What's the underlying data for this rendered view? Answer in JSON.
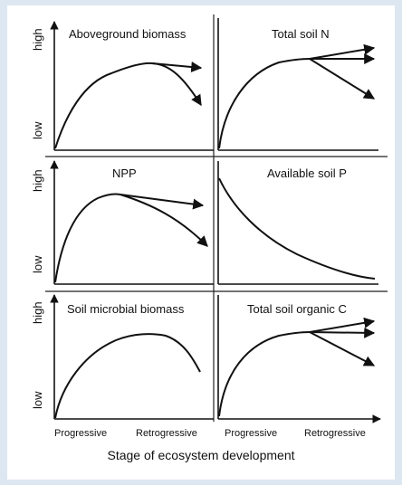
{
  "panels": [
    {
      "id": "aboveground",
      "title": "Aboveground biomass"
    },
    {
      "id": "soil-n",
      "title": "Total soil N"
    },
    {
      "id": "npp",
      "title": "NPP"
    },
    {
      "id": "soil-p",
      "title": "Available soil P"
    },
    {
      "id": "microbial",
      "title": "Soil microbial biomass"
    },
    {
      "id": "organic-c",
      "title": "Total soil organic C"
    }
  ],
  "axis": {
    "y_high": "high",
    "y_low": "low",
    "x_progressive": "Progressive",
    "x_retrogressive": "Retrogressive",
    "x_title": "Stage of ecosystem development"
  },
  "colors": {
    "ink": "#111111",
    "background": "#dde7f2"
  }
}
